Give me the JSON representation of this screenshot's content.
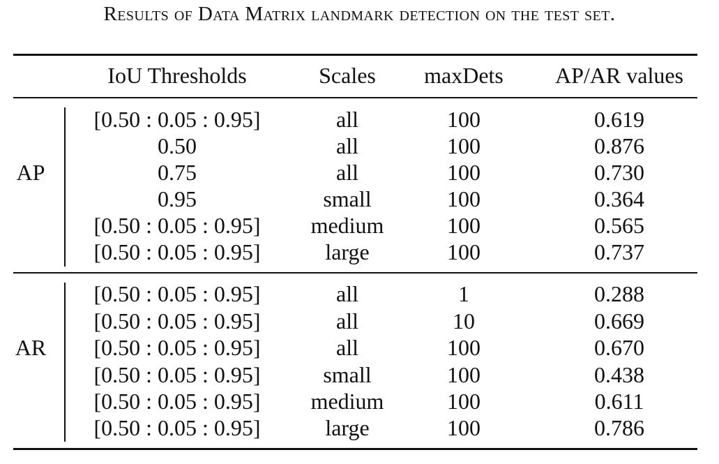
{
  "caption": {
    "first_word": "Results of",
    "part_2": "Data Matrix",
    "part_3": "landmark detection on the test set."
  },
  "table": {
    "headers": {
      "group": "",
      "iou": "IoU Thresholds",
      "scales": "Scales",
      "maxdets": "maxDets",
      "values": "AP/AR values"
    },
    "groups": [
      {
        "label": "AP",
        "rows": [
          {
            "iou": "[0.50 : 0.05 : 0.95]",
            "scale": "all",
            "maxdets": "100",
            "value": "0.619"
          },
          {
            "iou": "0.50",
            "scale": "all",
            "maxdets": "100",
            "value": "0.876"
          },
          {
            "iou": "0.75",
            "scale": "all",
            "maxdets": "100",
            "value": "0.730"
          },
          {
            "iou": "0.95",
            "scale": "small",
            "maxdets": "100",
            "value": "0.364"
          },
          {
            "iou": "[0.50 : 0.05 : 0.95]",
            "scale": "medium",
            "maxdets": "100",
            "value": "0.565"
          },
          {
            "iou": "[0.50 : 0.05 : 0.95]",
            "scale": "large",
            "maxdets": "100",
            "value": "0.737"
          }
        ]
      },
      {
        "label": "AR",
        "rows": [
          {
            "iou": "[0.50 : 0.05 : 0.95]",
            "scale": "all",
            "maxdets": "1",
            "value": "0.288"
          },
          {
            "iou": "[0.50 : 0.05 : 0.95]",
            "scale": "all",
            "maxdets": "10",
            "value": "0.669"
          },
          {
            "iou": "[0.50 : 0.05 : 0.95]",
            "scale": "all",
            "maxdets": "100",
            "value": "0.670"
          },
          {
            "iou": "[0.50 : 0.05 : 0.95]",
            "scale": "small",
            "maxdets": "100",
            "value": "0.438"
          },
          {
            "iou": "[0.50 : 0.05 : 0.95]",
            "scale": "medium",
            "maxdets": "100",
            "value": "0.611"
          },
          {
            "iou": "[0.50 : 0.05 : 0.95]",
            "scale": "large",
            "maxdets": "100",
            "value": "0.786"
          }
        ]
      }
    ]
  }
}
